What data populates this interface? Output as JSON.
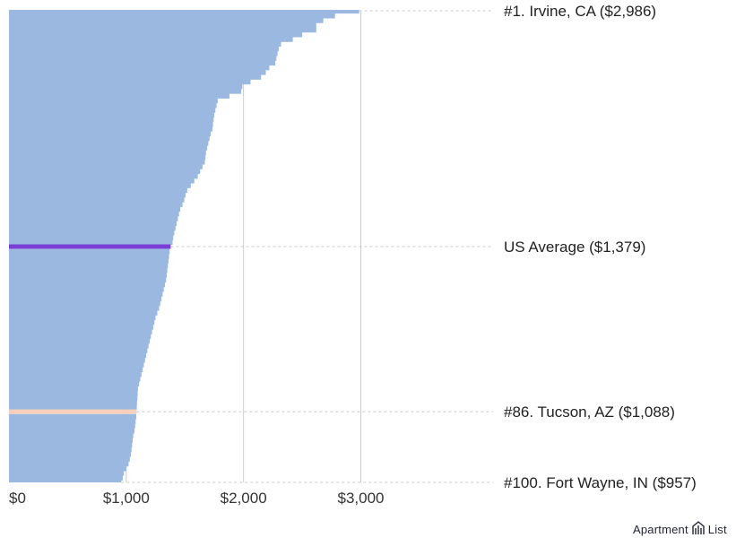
{
  "chart_data": {
    "type": "bar",
    "orientation": "horizontal",
    "title": "",
    "xlabel": "",
    "ylabel": "",
    "xlim": [
      0,
      4000
    ],
    "x_ticks": [
      0,
      1000,
      2000,
      3000
    ],
    "x_tick_labels": [
      "$0",
      "$1,000",
      "$2,000",
      "$3,000"
    ],
    "grid": true,
    "colors": {
      "bars": "#9bb9e0",
      "us_average": "#7b3fd8",
      "highlight": "#f7cfba",
      "gridline": "#cccccc",
      "leader": "#c8c8c8"
    },
    "values": [
      2986,
      2780,
      2680,
      2620,
      2620,
      2500,
      2420,
      2320,
      2300,
      2290,
      2280,
      2270,
      2220,
      2190,
      2150,
      2060,
      1990,
      1980,
      1880,
      1780,
      1770,
      1760,
      1750,
      1745,
      1740,
      1735,
      1720,
      1710,
      1700,
      1690,
      1680,
      1675,
      1670,
      1650,
      1630,
      1610,
      1580,
      1550,
      1520,
      1505,
      1495,
      1480,
      1460,
      1450,
      1440,
      1430,
      1420,
      1410,
      1400,
      1395,
      1379,
      1370,
      1365,
      1360,
      1355,
      1350,
      1345,
      1340,
      1330,
      1320,
      1310,
      1300,
      1290,
      1280,
      1265,
      1250,
      1240,
      1230,
      1220,
      1210,
      1200,
      1190,
      1180,
      1170,
      1160,
      1150,
      1140,
      1130,
      1120,
      1110,
      1100,
      1098,
      1095,
      1092,
      1090,
      1088,
      1085,
      1080,
      1075,
      1070,
      1060,
      1055,
      1050,
      1045,
      1040,
      1030,
      1020,
      1000,
      980,
      970,
      957
    ],
    "us_average_index": 50,
    "highlight_index": 85,
    "callouts": [
      {
        "index": 0,
        "text": "#1. Irvine, CA ($2,986)"
      },
      {
        "index": 50,
        "text": "US Average ($1,379)"
      },
      {
        "index": 85,
        "text": "#86. Tucson, AZ ($1,088)"
      },
      {
        "index": 100,
        "text": "#100. Fort Wayne, IN ($957)"
      }
    ]
  },
  "brand": {
    "name_left": "Apartment",
    "name_right": "List",
    "logo_icon": "apartment-list-logo-icon"
  }
}
